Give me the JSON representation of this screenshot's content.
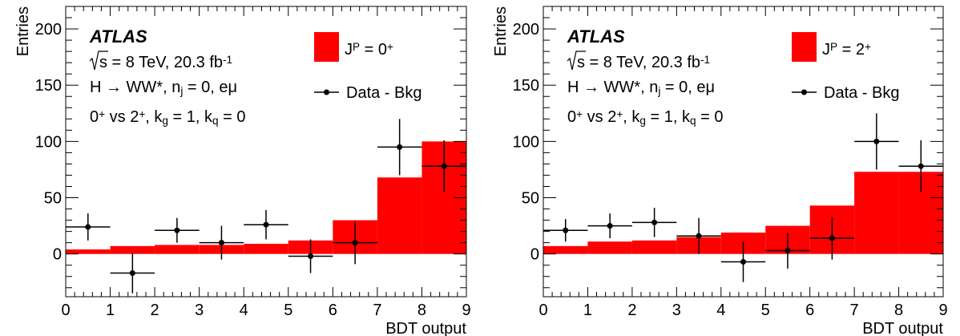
{
  "chart_data": [
    {
      "type": "bar",
      "xlabel": "BDT output",
      "ylabel": "Entries",
      "xlim": [
        0,
        9
      ],
      "ylim": [
        -38,
        220
      ],
      "x_ticks": [
        "0",
        "1",
        "2",
        "3",
        "4",
        "5",
        "6",
        "7",
        "8",
        "9"
      ],
      "y_ticks": [
        "0",
        "50",
        "100",
        "150",
        "200"
      ],
      "annotations": {
        "experiment": "ATLAS",
        "sqrt_s": "s",
        "energy": " = 8 TeV, 20.3 fb",
        "energy_sup": "-1",
        "channel": "H → WW*, n",
        "channel_sub": "j",
        "channel_tail": " = 0, eμ",
        "hyp_a": "0",
        "hyp_a_sup": "+",
        "hyp_mid": " vs 2",
        "hyp_b_sup": "+",
        "kg": ", k",
        "kg_sub": "g",
        "kg_val": " = 1, k",
        "kq_sub": "q",
        "kq_val": " = 0"
      },
      "legend": {
        "position": "top-right",
        "hist_label": "J",
        "hist_sup1": "P",
        "hist_mid": " = 0",
        "hist_sup2": "+",
        "data_label": "Data - Bkg"
      },
      "series": [
        {
          "kind": "histogram",
          "color": "#ff0000",
          "bin_edges": [
            0,
            1,
            2,
            3,
            4,
            5,
            6,
            7,
            8,
            9
          ],
          "values": [
            4,
            7,
            8,
            8,
            9,
            12,
            30,
            68,
            100
          ]
        },
        {
          "kind": "points",
          "color": "#000000",
          "x": [
            0.5,
            1.5,
            2.5,
            3.5,
            4.5,
            5.5,
            6.5,
            7.5,
            8.5
          ],
          "y": [
            24,
            -17,
            21,
            10,
            26,
            -2,
            10,
            95,
            78
          ],
          "yerr": [
            12,
            18,
            11,
            15,
            13,
            15,
            19,
            25,
            23
          ],
          "xerr": 0.5
        }
      ]
    },
    {
      "type": "bar",
      "xlabel": "BDT output",
      "ylabel": "Entries",
      "xlim": [
        0,
        9
      ],
      "ylim": [
        -38,
        220
      ],
      "x_ticks": [
        "0",
        "1",
        "2",
        "3",
        "4",
        "5",
        "6",
        "7",
        "8",
        "9"
      ],
      "y_ticks": [
        "0",
        "50",
        "100",
        "150",
        "200"
      ],
      "annotations": {
        "experiment": "ATLAS",
        "sqrt_s": "s",
        "energy": " = 8 TeV, 20.3 fb",
        "energy_sup": "-1",
        "channel": "H → WW*, n",
        "channel_sub": "j",
        "channel_tail": " = 0, eμ",
        "hyp_a": "0",
        "hyp_a_sup": "+",
        "hyp_mid": " vs 2",
        "hyp_b_sup": "+",
        "kg": ", k",
        "kg_sub": "g",
        "kg_val": " = 1, k",
        "kq_sub": "q",
        "kq_val": " = 0"
      },
      "legend": {
        "position": "top-right",
        "hist_label": "J",
        "hist_sup1": "P",
        "hist_mid": " = 2",
        "hist_sup2": "+",
        "data_label": "Data - Bkg"
      },
      "series": [
        {
          "kind": "histogram",
          "color": "#ff0000",
          "bin_edges": [
            0,
            1,
            2,
            3,
            4,
            5,
            6,
            7,
            8,
            9
          ],
          "values": [
            7,
            11,
            12,
            15,
            19,
            25,
            43,
            73,
            73
          ]
        },
        {
          "kind": "points",
          "color": "#000000",
          "x": [
            0.5,
            1.5,
            2.5,
            3.5,
            4.5,
            5.5,
            6.5,
            7.5,
            8.5
          ],
          "y": [
            21,
            25,
            28,
            16,
            -7,
            3,
            14,
            100,
            78
          ],
          "yerr": [
            10,
            11,
            13,
            16,
            18,
            16,
            19,
            25,
            23
          ],
          "xerr": 0.5
        }
      ]
    }
  ]
}
